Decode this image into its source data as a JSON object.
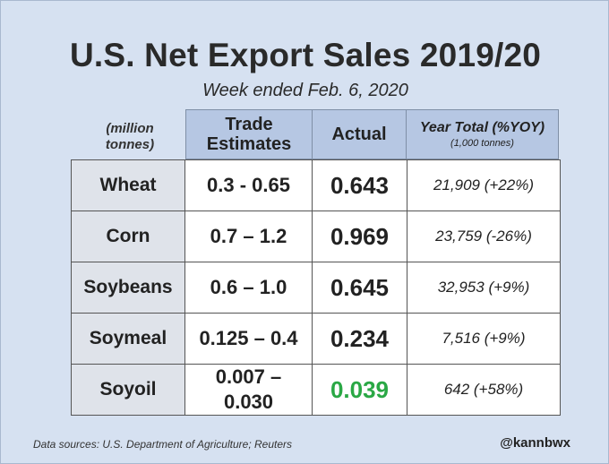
{
  "title": "U.S. Net Export Sales 2019/20",
  "subtitle": "Week ended Feb. 6, 2020",
  "chart_data": {
    "type": "table",
    "unit_note": [
      "(million",
      "tonnes)"
    ],
    "columns": {
      "trade_estimates": [
        "Trade",
        "Estimates"
      ],
      "actual": "Actual",
      "year_total": "Year Total (%YOY)",
      "year_total_unit": "(1,000 tonnes)"
    },
    "rows": [
      {
        "commodity": "Wheat",
        "estimate_lines": [
          "0.3 - 0.65"
        ],
        "actual": "0.643",
        "year_total": "21,909 (+22%)"
      },
      {
        "commodity": "Corn",
        "estimate_lines": [
          "0.7 – 1.2"
        ],
        "actual": "0.969",
        "year_total": "23,759 (-26%)"
      },
      {
        "commodity": "Soybeans",
        "estimate_lines": [
          "0.6 – 1.0"
        ],
        "actual": "0.645",
        "year_total": "32,953 (+9%)"
      },
      {
        "commodity": "Soymeal",
        "estimate_lines": [
          "0.125 – 0.4"
        ],
        "actual": "0.234",
        "year_total": "7,516 (+9%)"
      },
      {
        "commodity": "Soyoil",
        "estimate_lines": [
          "0.007 –",
          "0.030"
        ],
        "actual": "0.039",
        "year_total": "642 (+58%)",
        "actual_color": "#2aa845"
      }
    ]
  },
  "footer": {
    "source": "Data sources: U.S. Department of Agriculture; Reuters",
    "handle": "@kannbwx"
  }
}
